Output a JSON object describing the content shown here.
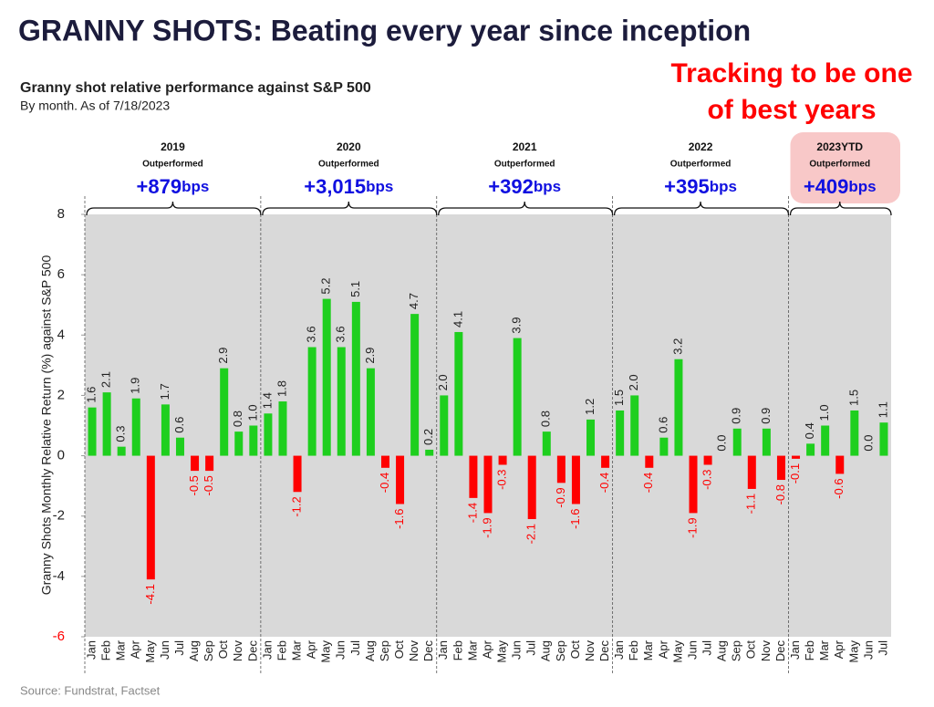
{
  "title": "GRANNY SHOTS: Beating every year since inception",
  "annotation": [
    "Tracking to be one",
    "of best years"
  ],
  "source": "Source: Fundstrat, Factset",
  "chart_data": {
    "type": "bar",
    "title": "Granny shot relative performance against S&P 500",
    "subtitle": "By month. As of 7/18/2023",
    "ylabel": "Granny Shots Monthly Relative Return (%) against S&P 500",
    "categories": [
      "Jan",
      "Feb",
      "Mar",
      "Apr",
      "May",
      "Jun",
      "Jul",
      "Aug",
      "Sep",
      "Oct",
      "Nov",
      "Dec",
      "Jan",
      "Feb",
      "Mar",
      "Apr",
      "May",
      "Jun",
      "Jul",
      "Aug",
      "Sep",
      "Oct",
      "Nov",
      "Dec",
      "Jan",
      "Feb",
      "Mar",
      "Apr",
      "May",
      "Jun",
      "Jul",
      "Aug",
      "Sep",
      "Oct",
      "Nov",
      "Dec",
      "Jan",
      "Feb",
      "Mar",
      "Apr",
      "May",
      "Jun",
      "Jul",
      "Aug",
      "Sep",
      "Oct",
      "Nov",
      "Dec",
      "Jan",
      "Feb",
      "Mar",
      "Apr",
      "May",
      "Jun",
      "Jul"
    ],
    "values": [
      1.6,
      2.1,
      0.3,
      1.9,
      -4.1,
      1.7,
      0.6,
      -0.5,
      -0.5,
      2.9,
      0.8,
      1.0,
      1.4,
      1.8,
      -1.2,
      3.6,
      5.2,
      3.6,
      5.1,
      2.9,
      -0.4,
      -1.6,
      4.7,
      0.2,
      2.0,
      4.1,
      -1.4,
      -1.9,
      -0.3,
      3.9,
      -2.1,
      0.8,
      -0.9,
      -1.6,
      1.2,
      -0.4,
      1.5,
      2.0,
      -0.4,
      0.6,
      3.2,
      -1.9,
      -0.3,
      0.0,
      0.9,
      -1.1,
      0.9,
      -0.8,
      -0.1,
      0.4,
      1.0,
      -0.6,
      1.5,
      0.0,
      1.1
    ],
    "value_labels": [
      "1.6",
      "2.1",
      "0.3",
      "1.9",
      "-4.1",
      "1.7",
      "0.6",
      "-0.5",
      "-0.5",
      "2.9",
      "0.8",
      "1.0",
      "1.4",
      "1.8",
      "-1.2",
      "3.6",
      "5.2",
      "3.6",
      "5.1",
      "2.9",
      "-0.4",
      "-1.6",
      "4.7",
      "0.2",
      "2.0",
      "4.1",
      "-1.4",
      "-1.9",
      "-0.3",
      "3.9",
      "-2.1",
      "0.8",
      "-0.9",
      "-1.6",
      "1.2",
      "-0.4",
      "1.5",
      "2.0",
      "-0.4",
      "0.6",
      "3.2",
      "-1.9",
      "-0.3",
      "0.0",
      "0.9",
      "-1.1",
      "0.9",
      "-0.8",
      "-0.1",
      "0.4",
      "1.0",
      "-0.6",
      "1.5",
      "0.0",
      "1.1"
    ],
    "positive_color": "#1ecf1e",
    "negative_color": "#ff0000",
    "ylim": [
      -6,
      8
    ],
    "yticks": [
      -6,
      -4,
      -2,
      0,
      2,
      4,
      6,
      8
    ],
    "groups": [
      {
        "year": "2019",
        "note": "Outperformed",
        "outperformance": "+879",
        "unit": "bps"
      },
      {
        "year": "2020",
        "note": "Outperformed",
        "outperformance": "+3,015",
        "unit": "bps"
      },
      {
        "year": "2021",
        "note": "Outperformed",
        "outperformance": "+392",
        "unit": "bps"
      },
      {
        "year": "2022",
        "note": "Outperformed",
        "outperformance": "+395",
        "unit": "bps"
      },
      {
        "year": "2023YTD",
        "note": "Outperformed",
        "outperformance": "+409",
        "unit": "bps",
        "highlight": true
      }
    ]
  }
}
